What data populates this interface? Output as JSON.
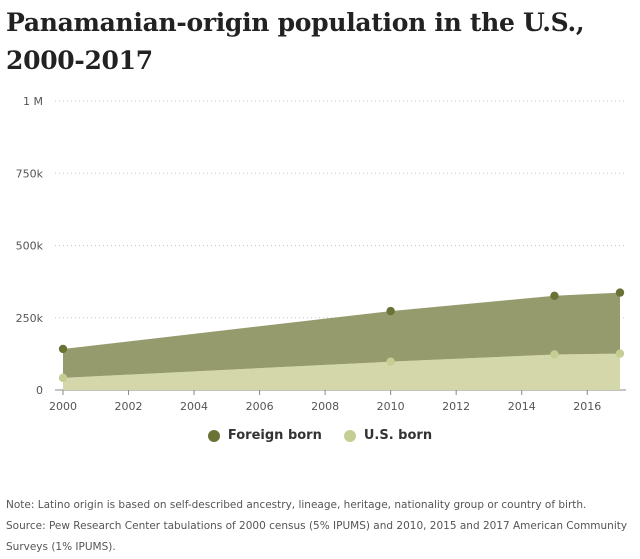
{
  "title": "Panamanian-origin population in the U.S., 2000-2017",
  "colors": {
    "foreign_born": "#6b7236",
    "foreign_born_area": "#969b6e",
    "us_born": "#c6cd93",
    "us_born_area": "#d3d7a9",
    "grid": "#c8c8c8"
  },
  "chart_data": {
    "type": "area",
    "stacked": true,
    "x": [
      2000,
      2010,
      2015,
      2017
    ],
    "series": [
      {
        "name": "U.S. born",
        "values": [
          42000,
          98000,
          123000,
          126000
        ]
      },
      {
        "name": "Foreign born",
        "values": [
          100000,
          175000,
          203000,
          211000
        ]
      }
    ],
    "xlim": [
      2000,
      2017
    ],
    "ylim": [
      0,
      1000000
    ],
    "x_ticks": [
      "2000",
      "2002",
      "2004",
      "2006",
      "2008",
      "2010",
      "2012",
      "2014",
      "2016"
    ],
    "y_ticks": [
      "0",
      "250k",
      "500k",
      "750k",
      "1 M"
    ],
    "y_tick_values": [
      0,
      250000,
      500000,
      750000,
      1000000
    ],
    "grid": true,
    "legend_position": "bottom"
  },
  "legend": [
    {
      "label": "Foreign born",
      "color_key": "foreign_born"
    },
    {
      "label": "U.S. born",
      "color_key": "us_born"
    }
  ],
  "note": "Note: Latino origin is based on self-described ancestry, lineage, heritage, nationality group or country of birth.",
  "source": "Source: Pew Research Center tabulations of 2000 census (5% IPUMS) and 2010, 2015 and 2017 American Community Surveys (1% IPUMS)."
}
